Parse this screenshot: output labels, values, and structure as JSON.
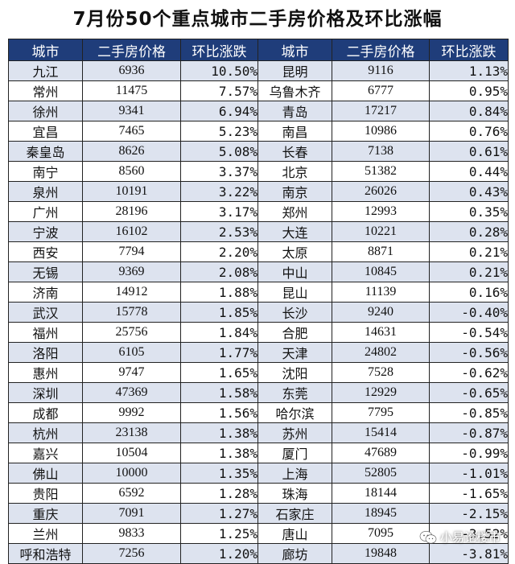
{
  "title": "7月份50个重点城市二手房价格及环比涨幅",
  "headers": [
    "城市",
    "二手房价格",
    "环比涨跌",
    "城市",
    "二手房价格",
    "环比涨跌"
  ],
  "rows": [
    {
      "city1": "九江",
      "price1": "6936",
      "change1": "10.50%",
      "city2": "昆明",
      "price2": "9116",
      "change2": "1.13%"
    },
    {
      "city1": "常州",
      "price1": "11475",
      "change1": "7.57%",
      "city2": "乌鲁木齐",
      "price2": "6777",
      "change2": "0.95%"
    },
    {
      "city1": "徐州",
      "price1": "9341",
      "change1": "6.94%",
      "city2": "青岛",
      "price2": "17217",
      "change2": "0.84%"
    },
    {
      "city1": "宜昌",
      "price1": "7465",
      "change1": "5.23%",
      "city2": "南昌",
      "price2": "10986",
      "change2": "0.76%"
    },
    {
      "city1": "秦皇岛",
      "price1": "8626",
      "change1": "5.08%",
      "city2": "长春",
      "price2": "7138",
      "change2": "0.61%"
    },
    {
      "city1": "南宁",
      "price1": "8560",
      "change1": "3.37%",
      "city2": "北京",
      "price2": "51382",
      "change2": "0.44%"
    },
    {
      "city1": "泉州",
      "price1": "10191",
      "change1": "3.22%",
      "city2": "南京",
      "price2": "26026",
      "change2": "0.43%"
    },
    {
      "city1": "广州",
      "price1": "28196",
      "change1": "3.17%",
      "city2": "郑州",
      "price2": "12993",
      "change2": "0.35%"
    },
    {
      "city1": "宁波",
      "price1": "16102",
      "change1": "2.53%",
      "city2": "大连",
      "price2": "10221",
      "change2": "0.28%"
    },
    {
      "city1": "西安",
      "price1": "7794",
      "change1": "2.20%",
      "city2": "太原",
      "price2": "8871",
      "change2": "0.21%"
    },
    {
      "city1": "无锡",
      "price1": "9369",
      "change1": "2.08%",
      "city2": "中山",
      "price2": "10845",
      "change2": "0.21%"
    },
    {
      "city1": "济南",
      "price1": "14912",
      "change1": "1.88%",
      "city2": "昆山",
      "price2": "11139",
      "change2": "0.16%"
    },
    {
      "city1": "武汉",
      "price1": "15778",
      "change1": "1.85%",
      "city2": "长沙",
      "price2": "9240",
      "change2": "-0.40%"
    },
    {
      "city1": "福州",
      "price1": "25756",
      "change1": "1.84%",
      "city2": "合肥",
      "price2": "14631",
      "change2": "-0.54%"
    },
    {
      "city1": "洛阳",
      "price1": "6105",
      "change1": "1.77%",
      "city2": "天津",
      "price2": "24802",
      "change2": "-0.56%"
    },
    {
      "city1": "惠州",
      "price1": "9747",
      "change1": "1.65%",
      "city2": "沈阳",
      "price2": "7528",
      "change2": "-0.62%"
    },
    {
      "city1": "深圳",
      "price1": "47369",
      "change1": "1.58%",
      "city2": "东莞",
      "price2": "12929",
      "change2": "-0.65%"
    },
    {
      "city1": "成都",
      "price1": "9992",
      "change1": "1.56%",
      "city2": "哈尔滨",
      "price2": "7795",
      "change2": "-0.85%"
    },
    {
      "city1": "杭州",
      "price1": "23138",
      "change1": "1.38%",
      "city2": "苏州",
      "price2": "15414",
      "change2": "-0.87%"
    },
    {
      "city1": "嘉兴",
      "price1": "10504",
      "change1": "1.38%",
      "city2": "厦门",
      "price2": "47689",
      "change2": "-0.99%"
    },
    {
      "city1": "佛山",
      "price1": "10000",
      "change1": "1.35%",
      "city2": "上海",
      "price2": "52805",
      "change2": "-1.01%"
    },
    {
      "city1": "贵阳",
      "price1": "6592",
      "change1": "1.28%",
      "city2": "珠海",
      "price2": "18144",
      "change2": "-1.65%"
    },
    {
      "city1": "重庆",
      "price1": "7091",
      "change1": "1.27%",
      "city2": "石家庄",
      "price2": "18945",
      "change2": "-2.15%"
    },
    {
      "city1": "兰州",
      "price1": "9833",
      "change1": "1.25%",
      "city2": "唐山",
      "price2": "7095",
      "change2": "-3.52%"
    },
    {
      "city1": "呼和浩特",
      "price1": "7256",
      "change1": "1.20%",
      "city2": "廊坊",
      "price2": "19848",
      "change2": "-3.81%"
    }
  ],
  "watermark": {
    "text": "小易论楼市",
    "icon": "wechat-icon"
  },
  "colors": {
    "header_bg": "#1f3d7a",
    "row_odd": "#dde3ef",
    "row_even": "#ffffff"
  }
}
